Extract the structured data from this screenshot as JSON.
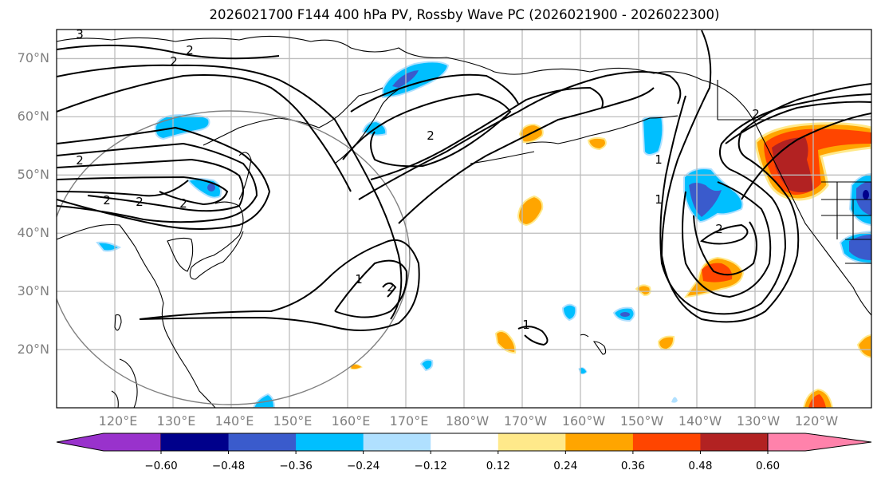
{
  "title": "2026021700 F144 400 hPa PV, Rossby Wave PC (2026021900 - 2026022300)",
  "map": {
    "projection": "PlateCarree",
    "lon_range": [
      110,
      250
    ],
    "lat_range": [
      10,
      75
    ],
    "lat_labels": [
      "70°N",
      "60°N",
      "50°N",
      "40°N",
      "30°N",
      "20°N"
    ],
    "lat_values": [
      70,
      60,
      50,
      40,
      30,
      20
    ],
    "lon_labels": [
      "120°E",
      "130°E",
      "140°E",
      "150°E",
      "160°E",
      "170°E",
      "180°W",
      "170°W",
      "160°W",
      "150°W",
      "140°W",
      "130°W",
      "120°W"
    ],
    "lon_values": [
      120,
      130,
      140,
      150,
      160,
      170,
      180,
      190,
      200,
      210,
      220,
      230,
      240
    ],
    "contour_labels": [
      "3",
      "2",
      "2",
      "2",
      "2",
      "2",
      "2",
      "1",
      "2",
      "1",
      "1",
      "2",
      "2",
      "1",
      "2"
    ],
    "circle_center": [
      140,
      41
    ],
    "colors": {
      "grid": "#bdbdbd",
      "coast": "#000000",
      "contour": "#000000",
      "circle": "#808080"
    }
  },
  "colorbar": {
    "levels": [
      "−0.60",
      "−0.48",
      "−0.36",
      "−0.24",
      "−0.12",
      "0.12",
      "0.24",
      "0.36",
      "0.48",
      "0.60"
    ],
    "colors": [
      "#9932cc",
      "#00008b",
      "#3a5bcc",
      "#00bfff",
      "#b0e0ff",
      "#ffffff",
      "#ffe98a",
      "#ffa500",
      "#ff4500",
      "#b22222",
      "#ff82ab"
    ]
  },
  "chart_data": {
    "type": "heatmap",
    "title": "2026021700 F144 400 hPa PV, Rossby Wave PC (2026021900 - 2026022300)",
    "variable": "Rossby Wave PC (shaded), 400 hPa PV (contours)",
    "xlabel": "",
    "ylabel": "",
    "xlim": [
      110,
      250
    ],
    "ylim": [
      10,
      75
    ],
    "levels": [
      -0.6,
      -0.48,
      -0.36,
      -0.24,
      -0.12,
      0.12,
      0.24,
      0.36,
      0.48,
      0.6
    ],
    "features": [
      {
        "name": "neg anomaly NE China",
        "lon": 136,
        "lat": 48,
        "peak": -0.4
      },
      {
        "name": "neg anomaly Okhotsk",
        "lon": 136,
        "lat": 59,
        "peak": -0.3
      },
      {
        "name": "neg anomaly Bering",
        "lon": 176,
        "lat": 65,
        "peak": -0.45
      },
      {
        "name": "neg anomaly Gulf of Alaska",
        "lon": 221,
        "lat": 46,
        "peak": -0.45
      },
      {
        "name": "pos anomaly BC coast",
        "lon": 237,
        "lat": 52,
        "peak": 0.55
      },
      {
        "name": "pos anomaly off California",
        "lon": 226,
        "lat": 33,
        "peak": 0.4
      },
      {
        "name": "neg anomaly US Rockies",
        "lon": 249,
        "lat": 46,
        "peak": -0.55
      }
    ]
  }
}
